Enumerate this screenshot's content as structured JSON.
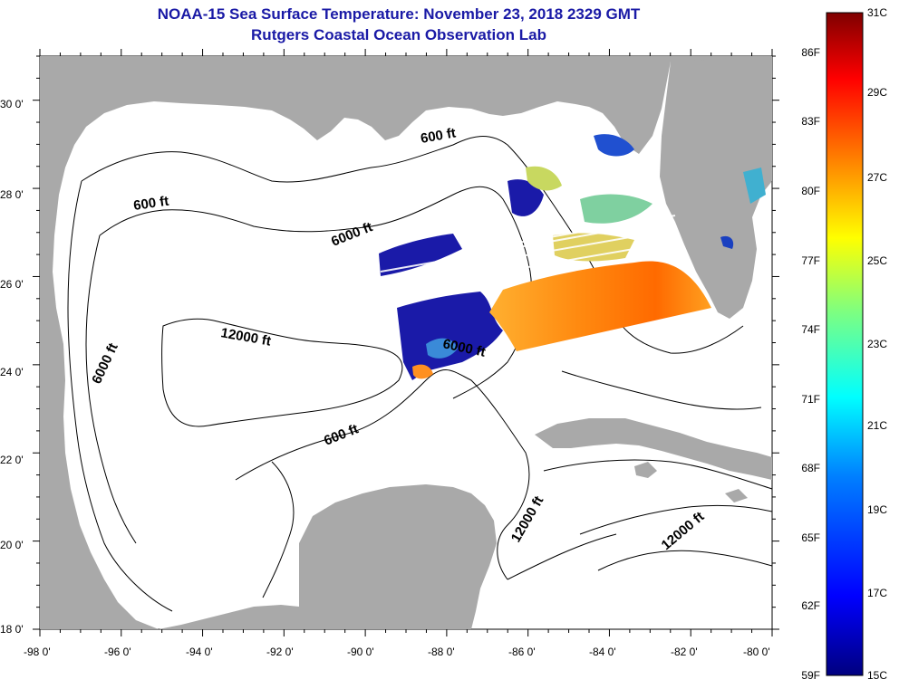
{
  "title": "NOAA-15 Sea Surface Temperature:  November 23, 2018 2329 GMT",
  "subtitle": "Rutgers Coastal Ocean Observation Lab",
  "map": {
    "lon_range": [
      -98,
      -80
    ],
    "lat_range": [
      18,
      31
    ],
    "lon_ticks": [
      "-98 0'",
      "-96 0'",
      "-94 0'",
      "-92 0'",
      "-90 0'",
      "-88 0'",
      "-86 0'",
      "-84 0'",
      "-82 0'",
      "-80 0'"
    ],
    "lat_ticks": [
      "18 0'",
      "20 0'",
      "22 0'",
      "24 0'",
      "26 0'",
      "28 0'",
      "30 0'"
    ],
    "land_color": "#a9a9a9",
    "ocean_color": "#ffffff"
  },
  "contour_labels": [
    {
      "text": "600 ft"
    },
    {
      "text": "600 ft"
    },
    {
      "text": "6000 ft"
    },
    {
      "text": "6000 ft"
    },
    {
      "text": "12000 ft"
    },
    {
      "text": "6000 ft"
    },
    {
      "text": "600 ft"
    },
    {
      "text": "12000 ft"
    },
    {
      "text": "12000 ft"
    }
  ],
  "colorbar": {
    "f_labels": [
      "86F",
      "83F",
      "80F",
      "77F",
      "74F",
      "71F",
      "68F",
      "65F",
      "62F",
      "59F"
    ],
    "c_labels": [
      "31C",
      "29C",
      "27C",
      "25C",
      "23C",
      "21C",
      "19C",
      "17C",
      "15C"
    ],
    "colors": [
      "#00007f",
      "#0000ff",
      "#007fff",
      "#00ffff",
      "#7fff7f",
      "#ffff00",
      "#ff7f00",
      "#ff0000",
      "#7f0000"
    ]
  }
}
